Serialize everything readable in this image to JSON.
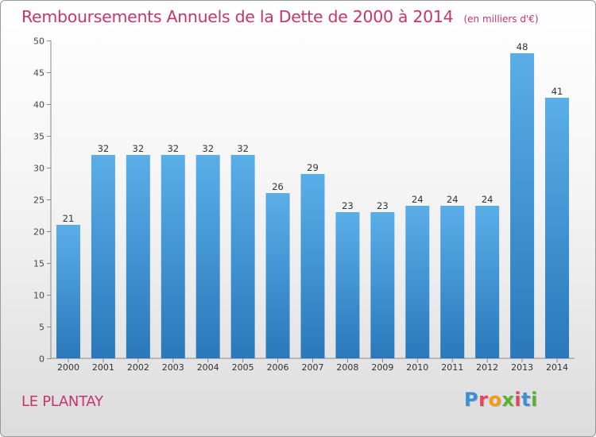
{
  "title": "Remboursements Annuels de la Dette de 2000 à 2014",
  "unit": "(en milliers d'€)",
  "commune": "LE PLANTAY",
  "logo": {
    "text": "Proxiti",
    "letter_colors": [
      "#3a8fd6",
      "#e0475f",
      "#f39a1a",
      "#5ab031",
      "#e0475f",
      "#3a8fd6",
      "#5ab031"
    ]
  },
  "colors": {
    "bar_top": "#5aaee8",
    "bar_bottom": "#2a78bb",
    "accent": "#c8356a",
    "axis": "#888888",
    "grid": "#dddddd"
  },
  "chart_data": {
    "type": "bar",
    "title": "Remboursements Annuels de la Dette de 2000 à 2014",
    "xlabel": "",
    "ylabel": "",
    "categories": [
      "2000",
      "2001",
      "2002",
      "2003",
      "2004",
      "2005",
      "2006",
      "2007",
      "2008",
      "2009",
      "2010",
      "2011",
      "2012",
      "2013",
      "2014"
    ],
    "values": [
      21,
      32,
      32,
      32,
      32,
      32,
      26,
      29,
      23,
      23,
      24,
      24,
      24,
      48,
      41
    ],
    "ylim": [
      0,
      50
    ],
    "yticks": [
      0,
      5,
      10,
      15,
      20,
      25,
      30,
      35,
      40,
      45,
      50
    ],
    "grid": false,
    "data_labels": true
  }
}
